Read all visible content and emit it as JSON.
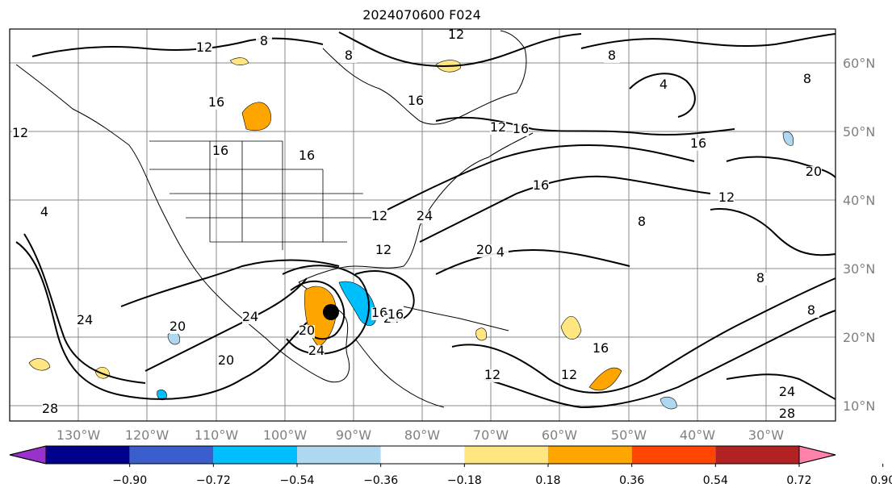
{
  "title": "2024070600 F024",
  "map": {
    "lat_labels": [
      "60°N",
      "50°N",
      "40°N",
      "30°N",
      "20°N",
      "10°N"
    ],
    "lon_labels": [
      "130°W",
      "120°W",
      "110°W",
      "100°W",
      "90°W",
      "80°W",
      "70°W",
      "60°W",
      "50°W",
      "40°W",
      "30°W"
    ],
    "contour_labels": [
      "8",
      "12",
      "12",
      "8",
      "4",
      "16",
      "12",
      "16",
      "12",
      "16",
      "12",
      "16",
      "16",
      "16",
      "20",
      "4",
      "8",
      "12",
      "24",
      "4",
      "16",
      "12",
      "20",
      "24",
      "24",
      "20",
      "20",
      "24",
      "12",
      "16",
      "12",
      "24",
      "28",
      "8",
      "8",
      "8",
      "8",
      "28",
      "16",
      "24",
      "20",
      "16"
    ]
  },
  "colorbar": {
    "ticks": [
      "−0.90",
      "−0.72",
      "−0.54",
      "−0.36",
      "−0.18",
      "0.18",
      "0.36",
      "0.54",
      "0.72",
      "0.90"
    ],
    "colors": [
      "#9932cc",
      "#00008b",
      "#3a5fcd",
      "#00bfff",
      "#add8f0",
      "#ffffff",
      "#ffe680",
      "#ffa500",
      "#ff4500",
      "#b22222",
      "#ff82ab"
    ]
  }
}
